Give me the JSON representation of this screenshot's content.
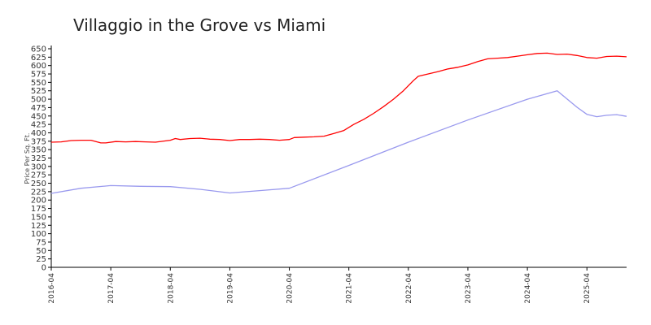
{
  "chart_data": {
    "type": "line",
    "title": "Villaggio in the Grove vs Miami",
    "xlabel": "",
    "ylabel": "Price Per Sq. Ft.",
    "ylim": [
      0,
      650
    ],
    "yticks": [
      0,
      25,
      50,
      75,
      100,
      125,
      150,
      175,
      200,
      225,
      250,
      275,
      300,
      325,
      350,
      375,
      400,
      425,
      450,
      475,
      500,
      525,
      550,
      575,
      600,
      625,
      650
    ],
    "xlim": [
      "2016-04",
      "2025-12"
    ],
    "xticks": [
      "2016-04",
      "2017-04",
      "2018-04",
      "2019-04",
      "2020-04",
      "2021-04",
      "2022-04",
      "2023-04",
      "2024-04",
      "2025-04"
    ],
    "grid": false,
    "legend": "none",
    "series": [
      {
        "color": "#ff0000",
        "points": [
          [
            "2016-04",
            372
          ],
          [
            "2016-06",
            373
          ],
          [
            "2016-08",
            377
          ],
          [
            "2016-10",
            378
          ],
          [
            "2016-12",
            378
          ],
          [
            "2017-02",
            370
          ],
          [
            "2017-03",
            370
          ],
          [
            "2017-05",
            374
          ],
          [
            "2017-07",
            373
          ],
          [
            "2017-09",
            374
          ],
          [
            "2017-11",
            373
          ],
          [
            "2018-01",
            372
          ],
          [
            "2018-04",
            378
          ],
          [
            "2018-05",
            383
          ],
          [
            "2018-06",
            380
          ],
          [
            "2018-08",
            383
          ],
          [
            "2018-10",
            384
          ],
          [
            "2018-12",
            381
          ],
          [
            "2019-02",
            380
          ],
          [
            "2019-04",
            377
          ],
          [
            "2019-06",
            380
          ],
          [
            "2019-08",
            380
          ],
          [
            "2019-10",
            381
          ],
          [
            "2019-12",
            380
          ],
          [
            "2020-02",
            378
          ],
          [
            "2020-04",
            380
          ],
          [
            "2020-05",
            386
          ],
          [
            "2020-07",
            387
          ],
          [
            "2020-09",
            388
          ],
          [
            "2020-11",
            390
          ],
          [
            "2021-01",
            398
          ],
          [
            "2021-03",
            407
          ],
          [
            "2021-05",
            425
          ],
          [
            "2021-07",
            440
          ],
          [
            "2021-09",
            458
          ],
          [
            "2021-11",
            478
          ],
          [
            "2022-01",
            500
          ],
          [
            "2022-03",
            525
          ],
          [
            "2022-05",
            555
          ],
          [
            "2022-06",
            568
          ],
          [
            "2022-08",
            575
          ],
          [
            "2022-10",
            582
          ],
          [
            "2022-12",
            590
          ],
          [
            "2023-02",
            595
          ],
          [
            "2023-04",
            602
          ],
          [
            "2023-06",
            612
          ],
          [
            "2023-08",
            620
          ],
          [
            "2023-10",
            622
          ],
          [
            "2023-12",
            624
          ],
          [
            "2024-02",
            628
          ],
          [
            "2024-04",
            632
          ],
          [
            "2024-06",
            636
          ],
          [
            "2024-08",
            637
          ],
          [
            "2024-10",
            633
          ],
          [
            "2024-12",
            634
          ],
          [
            "2025-02",
            630
          ],
          [
            "2025-04",
            624
          ],
          [
            "2025-06",
            622
          ],
          [
            "2025-08",
            627
          ],
          [
            "2025-10",
            628
          ],
          [
            "2025-12",
            626
          ]
        ]
      },
      {
        "color": "#9999ee",
        "points": [
          [
            "2016-04",
            220
          ],
          [
            "2016-10",
            235
          ],
          [
            "2017-04",
            243
          ],
          [
            "2017-10",
            241
          ],
          [
            "2018-04",
            240
          ],
          [
            "2018-10",
            232
          ],
          [
            "2019-04",
            221
          ],
          [
            "2019-10",
            228
          ],
          [
            "2020-04",
            235
          ],
          [
            "2021-04",
            303
          ],
          [
            "2022-04",
            372
          ],
          [
            "2023-04",
            438
          ],
          [
            "2024-04",
            500
          ],
          [
            "2024-10",
            525
          ],
          [
            "2025-02",
            476
          ],
          [
            "2025-04",
            455
          ],
          [
            "2025-06",
            448
          ],
          [
            "2025-08",
            452
          ],
          [
            "2025-10",
            454
          ],
          [
            "2025-12",
            449
          ]
        ]
      }
    ]
  }
}
